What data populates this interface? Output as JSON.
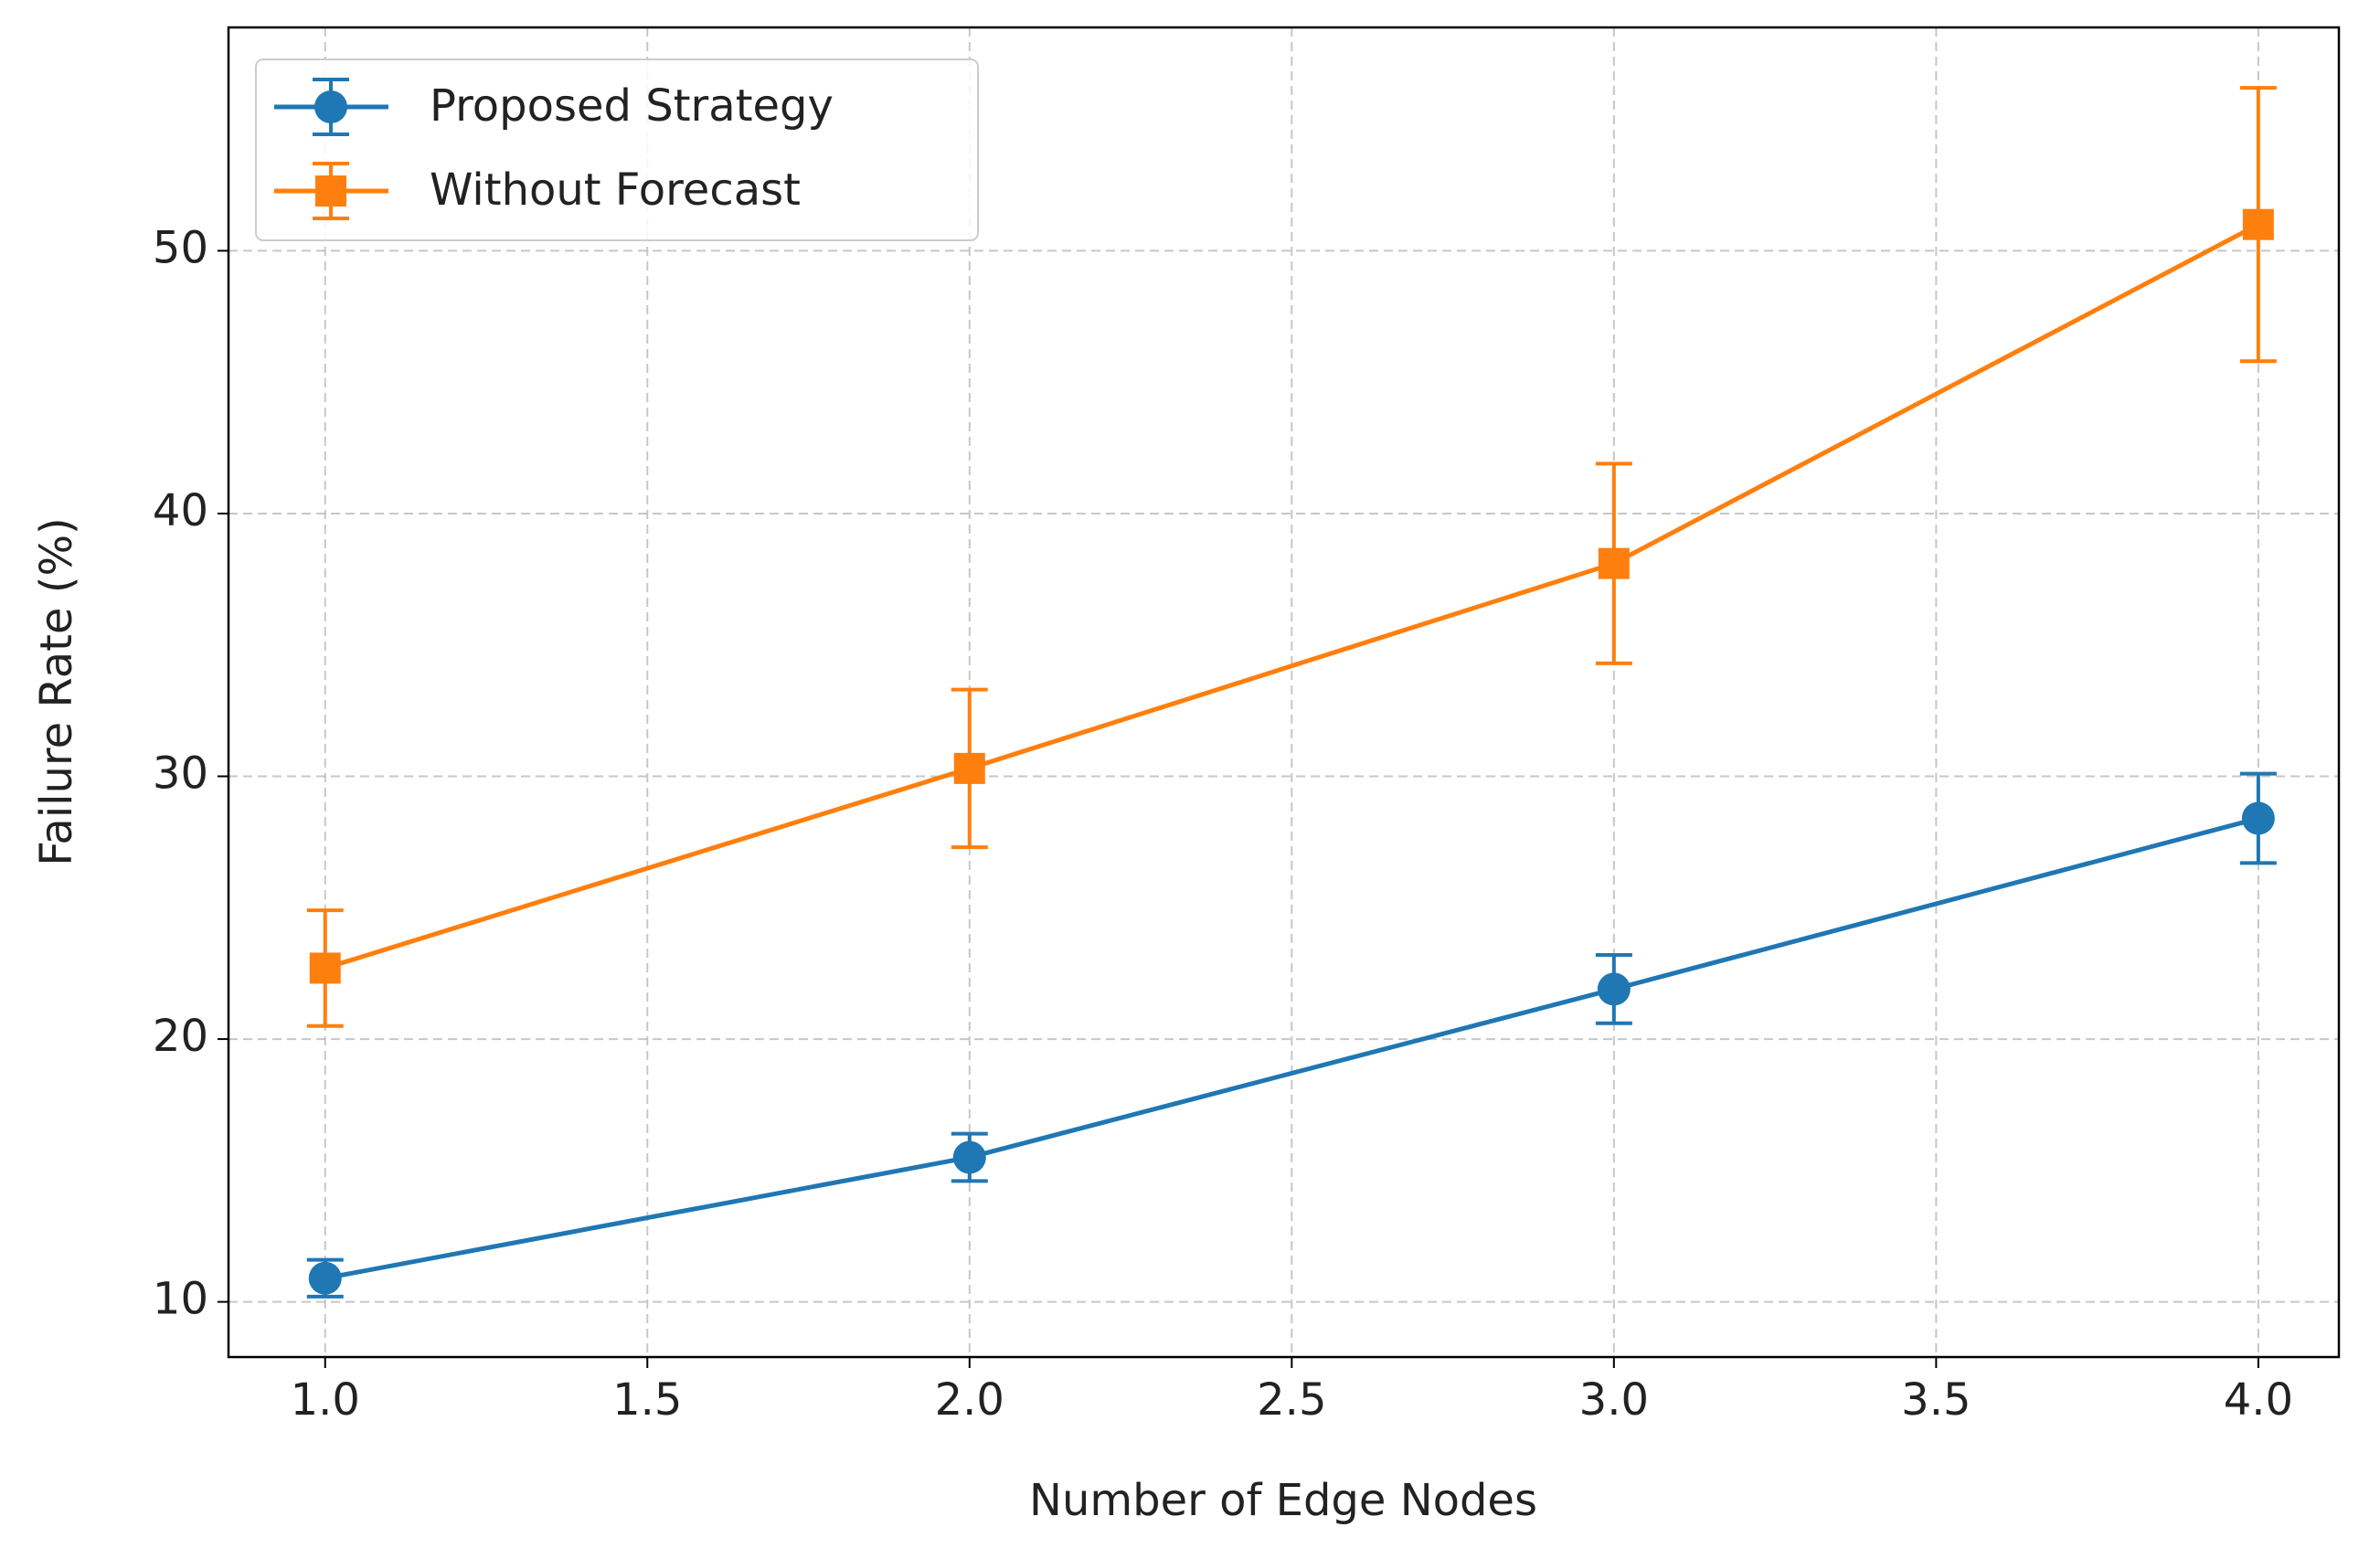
{
  "chart_data": {
    "type": "errorbar_line",
    "xlabel": "Number of Edge Nodes",
    "ylabel": "Failure Rate (%)",
    "x": [
      1.0,
      2.0,
      3.0,
      4.0
    ],
    "series": [
      {
        "name": "Proposed Strategy",
        "color": "#1f77b4",
        "marker": "circle",
        "values": [
          10.9,
          15.5,
          21.9,
          28.4
        ],
        "errors": [
          0.7,
          0.9,
          1.3,
          1.7
        ]
      },
      {
        "name": "Without Forecast",
        "color": "#ff7f0e",
        "marker": "square",
        "values": [
          22.7,
          30.3,
          38.1,
          51.0
        ],
        "errors": [
          2.2,
          3.0,
          3.8,
          5.2
        ]
      }
    ],
    "xlim": [
      0.85,
      4.125
    ],
    "ylim": [
      7.9,
      58.5
    ],
    "xticks": [
      {
        "value": 1.0,
        "label": "1.0"
      },
      1.5,
      {
        "value": 2.0,
        "label": "2.0"
      },
      2.5,
      {
        "value": 3.0,
        "label": "3.0"
      },
      3.5,
      {
        "value": 4.0,
        "label": "4.0"
      }
    ],
    "yticks": [
      10,
      20,
      30,
      40,
      50
    ],
    "grid": true,
    "legend": "upper left"
  }
}
